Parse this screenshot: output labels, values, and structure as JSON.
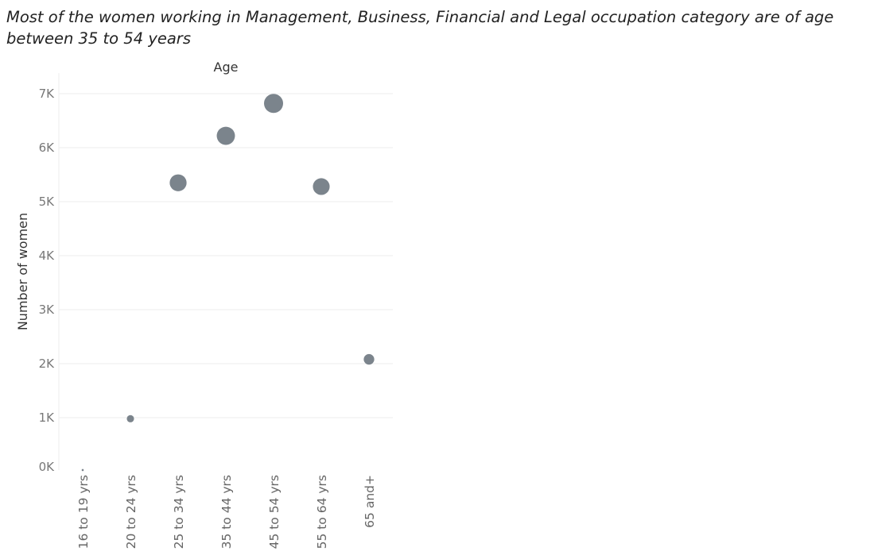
{
  "chart_data": {
    "type": "scatter",
    "title": "Most of the women working in Management, Business, Financial and Legal occupation category are of age between 35 to 54 years",
    "column_header": "Age",
    "ylabel": "Number of women",
    "xlabel": "",
    "categories": [
      "16 to 19 yrs",
      "20 to 24 yrs",
      "25 to 34 yrs",
      "35 to 44 yrs",
      "45 to 54 yrs",
      "55 to 64 yrs",
      "65 and+"
    ],
    "values": [
      30,
      980,
      5350,
      6220,
      6820,
      5280,
      2080
    ],
    "ylim": [
      0,
      7000
    ],
    "yticks": [
      0,
      1000,
      2000,
      3000,
      4000,
      5000,
      6000,
      7000
    ],
    "ytick_labels": [
      "0K",
      "1K",
      "2K",
      "3K",
      "4K",
      "5K",
      "6K",
      "7K"
    ],
    "grid": true,
    "marker_color": "#7b848c",
    "size_encodes_value": true
  }
}
